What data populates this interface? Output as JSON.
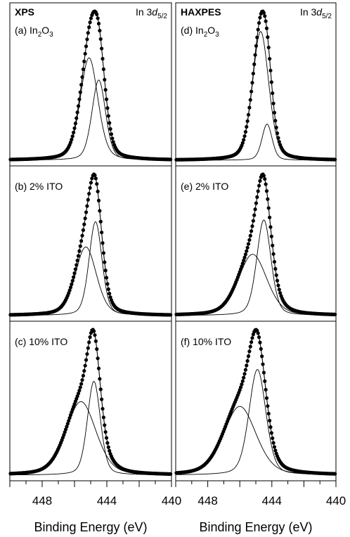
{
  "colors": {
    "background": "#ffffff",
    "line": "#000000",
    "points": "#000000"
  },
  "columns": [
    {
      "title": "XPS",
      "xlabel": "Binding Energy (eV)"
    },
    {
      "title": "HAXPES",
      "xlabel": "Binding Energy (eV)"
    }
  ],
  "core_level": {
    "prefix": "In 3",
    "orbital": "d",
    "subscript": "5/2"
  },
  "chart_data": [
    {
      "type": "line",
      "technique": "XPS",
      "panel": "(a)",
      "label": {
        "prefix": "(a) In",
        "sub1": "2",
        "mid": "O",
        "sub2": "3"
      },
      "xlim": [
        450,
        440
      ],
      "xlabel": "",
      "xticks": [
        448,
        444,
        440
      ],
      "x_reversed": true,
      "series": [
        {
          "role": "component",
          "peaks": [
            {
              "center": 445.1,
              "fwhm": 1.3,
              "height": 0.74
            }
          ]
        },
        {
          "role": "component",
          "peaks": [
            {
              "center": 444.5,
              "fwhm": 1.0,
              "height": 0.58
            }
          ]
        },
        {
          "role": "data-points",
          "peaks": [
            {
              "center": 445.1,
              "fwhm": 1.3,
              "height": 0.74
            },
            {
              "center": 444.5,
              "fwhm": 1.0,
              "height": 0.58
            }
          ]
        },
        {
          "role": "fit-envelope",
          "peaks": [
            {
              "center": 445.1,
              "fwhm": 1.3,
              "height": 0.74
            },
            {
              "center": 444.5,
              "fwhm": 1.0,
              "height": 0.58
            }
          ]
        }
      ]
    },
    {
      "type": "line",
      "technique": "XPS",
      "panel": "(b)",
      "label": {
        "prefix": "(b) 2% ITO"
      },
      "xlim": [
        450,
        440
      ],
      "xlabel": "",
      "xticks": [
        448,
        444,
        440
      ],
      "x_reversed": true,
      "series": [
        {
          "role": "component",
          "peaks": [
            {
              "center": 445.3,
              "fwhm": 1.55,
              "height": 0.6
            }
          ]
        },
        {
          "role": "component",
          "peaks": [
            {
              "center": 444.7,
              "fwhm": 0.95,
              "height": 0.82
            }
          ]
        },
        {
          "role": "data-points",
          "peaks": [
            {
              "center": 445.3,
              "fwhm": 1.55,
              "height": 0.6
            },
            {
              "center": 444.7,
              "fwhm": 0.95,
              "height": 0.82
            }
          ]
        },
        {
          "role": "fit-envelope",
          "peaks": [
            {
              "center": 445.3,
              "fwhm": 1.55,
              "height": 0.6
            },
            {
              "center": 444.7,
              "fwhm": 0.95,
              "height": 0.82
            }
          ]
        }
      ]
    },
    {
      "type": "line",
      "technique": "XPS",
      "panel": "(c)",
      "label": {
        "prefix": "(c) 10% ITO"
      },
      "xlim": [
        450,
        440
      ],
      "xlabel": "Binding Energy (eV)",
      "xticks": [
        448,
        444,
        440
      ],
      "x_reversed": true,
      "series": [
        {
          "role": "component",
          "peaks": [
            {
              "center": 445.6,
              "fwhm": 2.2,
              "height": 0.58
            }
          ]
        },
        {
          "role": "component",
          "peaks": [
            {
              "center": 444.8,
              "fwhm": 0.95,
              "height": 0.74
            }
          ]
        },
        {
          "role": "data-points",
          "peaks": [
            {
              "center": 445.6,
              "fwhm": 2.2,
              "height": 0.58
            },
            {
              "center": 444.8,
              "fwhm": 0.95,
              "height": 0.74
            }
          ]
        },
        {
          "role": "fit-envelope",
          "peaks": [
            {
              "center": 445.6,
              "fwhm": 2.2,
              "height": 0.58
            },
            {
              "center": 444.8,
              "fwhm": 0.95,
              "height": 0.74
            }
          ]
        }
      ]
    },
    {
      "type": "line",
      "technique": "HAXPES",
      "panel": "(d)",
      "label": {
        "prefix": "(d) In",
        "sub1": "2",
        "mid": "O",
        "sub2": "3"
      },
      "xlim": [
        450,
        440
      ],
      "xlabel": "",
      "xticks": [
        448,
        444,
        440
      ],
      "x_reversed": true,
      "series": [
        {
          "role": "component",
          "peaks": [
            {
              "center": 444.7,
              "fwhm": 1.2,
              "height": 0.96
            }
          ]
        },
        {
          "role": "component",
          "peaks": [
            {
              "center": 444.3,
              "fwhm": 0.75,
              "height": 0.27
            }
          ]
        },
        {
          "role": "data-points",
          "peaks": [
            {
              "center": 444.7,
              "fwhm": 1.2,
              "height": 0.96
            },
            {
              "center": 444.3,
              "fwhm": 0.75,
              "height": 0.27
            }
          ]
        },
        {
          "role": "fit-envelope",
          "peaks": [
            {
              "center": 444.7,
              "fwhm": 1.2,
              "height": 0.96
            },
            {
              "center": 444.3,
              "fwhm": 0.75,
              "height": 0.27
            }
          ]
        }
      ]
    },
    {
      "type": "line",
      "technique": "HAXPES",
      "panel": "(e)",
      "label": {
        "prefix": "(e) 2% ITO"
      },
      "xlim": [
        450,
        440
      ],
      "xlabel": "",
      "xticks": [
        448,
        444,
        440
      ],
      "x_reversed": true,
      "series": [
        {
          "role": "component",
          "peaks": [
            {
              "center": 445.2,
              "fwhm": 2.1,
              "height": 0.5
            }
          ]
        },
        {
          "role": "component",
          "peaks": [
            {
              "center": 444.5,
              "fwhm": 1.05,
              "height": 0.78
            }
          ]
        },
        {
          "role": "data-points",
          "peaks": [
            {
              "center": 445.2,
              "fwhm": 2.1,
              "height": 0.5
            },
            {
              "center": 444.5,
              "fwhm": 1.05,
              "height": 0.78
            }
          ]
        },
        {
          "role": "fit-envelope",
          "peaks": [
            {
              "center": 445.2,
              "fwhm": 2.1,
              "height": 0.5
            },
            {
              "center": 444.5,
              "fwhm": 1.05,
              "height": 0.78
            }
          ]
        }
      ]
    },
    {
      "type": "line",
      "technique": "HAXPES",
      "panel": "(f)",
      "label": {
        "prefix": "(f) 10% ITO"
      },
      "xlim": [
        450,
        440
      ],
      "xlabel": "Binding Energy (eV)",
      "xticks": [
        448,
        444,
        440
      ],
      "x_reversed": true,
      "series": [
        {
          "role": "component",
          "peaks": [
            {
              "center": 446.0,
              "fwhm": 2.4,
              "height": 0.54
            }
          ]
        },
        {
          "role": "component",
          "peaks": [
            {
              "center": 444.9,
              "fwhm": 1.25,
              "height": 0.83
            }
          ]
        },
        {
          "role": "data-points",
          "peaks": [
            {
              "center": 446.0,
              "fwhm": 2.4,
              "height": 0.54
            },
            {
              "center": 444.9,
              "fwhm": 1.25,
              "height": 0.83
            }
          ]
        },
        {
          "role": "fit-envelope",
          "peaks": [
            {
              "center": 446.0,
              "fwhm": 2.4,
              "height": 0.54
            },
            {
              "center": 444.9,
              "fwhm": 1.25,
              "height": 0.83
            }
          ]
        }
      ]
    }
  ]
}
